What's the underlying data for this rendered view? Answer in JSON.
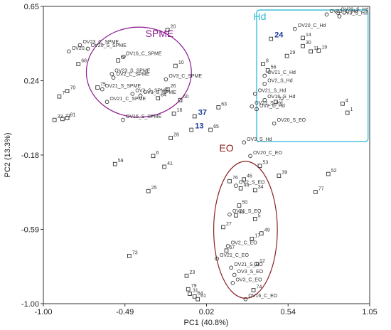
{
  "chart_data": {
    "type": "scatter",
    "xlabel": "PC1 (40.8%)",
    "ylabel": "PC2 (13.3%)",
    "xlim": [
      -1.0,
      1.05
    ],
    "ylim": [
      -1.0,
      0.65
    ],
    "xticks": [
      "-1.00",
      "-0.49",
      "0.02",
      "0.54",
      "1.05"
    ],
    "yticks": [
      "0.65",
      "0.24",
      "-0.18",
      "-0.59",
      "-1.00"
    ],
    "grid": false,
    "colors": {
      "spme": "#8b1a8f",
      "hd": "#2db8d4",
      "eo": "#8b2020",
      "highlight": "#1a3a9c",
      "marker": "#333333"
    },
    "groups": [
      {
        "label": "SPME",
        "type": "ellipse",
        "cx": -0.4,
        "cy": 0.285,
        "rx": 0.33,
        "ry": 0.25,
        "label_x": -0.27,
        "label_y": 0.48
      },
      {
        "label": "Hd",
        "type": "rect",
        "x0": 0.34,
        "x1": 1.04,
        "y0": -0.1,
        "y1": 0.63,
        "label_x": 0.36,
        "label_y": 0.575
      },
      {
        "label": "EO",
        "type": "ellipse",
        "cx": 0.27,
        "cy": -0.59,
        "rx": 0.2,
        "ry": 0.38,
        "label_x": 0.15,
        "label_y": -0.155
      }
    ],
    "points": [
      {
        "label": "OV23_C_SPME",
        "x": -0.77,
        "y": 0.435,
        "marker": "circle",
        "group": "spme"
      },
      {
        "label": "OV20_S_SPME",
        "x": -0.72,
        "y": 0.415,
        "marker": "circle",
        "group": "spme"
      },
      {
        "label": "OV20...",
        "x": -0.84,
        "y": 0.4,
        "marker": "circle",
        "group": "spme"
      },
      {
        "label": "OV16_C_SPME",
        "x": -0.5,
        "y": 0.37,
        "marker": "circle",
        "group": "spme"
      },
      {
        "label": "OV23_S_SPME",
        "x": -0.57,
        "y": 0.275,
        "marker": "circle",
        "group": "spme"
      },
      {
        "label": "OV2_C_SPME",
        "x": -0.56,
        "y": 0.255,
        "marker": "circle",
        "group": "spme"
      },
      {
        "label": "OV3_C_SPME",
        "x": -0.23,
        "y": 0.245,
        "marker": "circle",
        "group": "spme"
      },
      {
        "label": "OV21_S_SPME",
        "x": -0.63,
        "y": 0.19,
        "marker": "circle",
        "group": "spme"
      },
      {
        "label": "OV2_S_SPME",
        "x": -0.44,
        "y": 0.165,
        "marker": "circle",
        "group": "spme"
      },
      {
        "label": "OV3_S_SPME",
        "x": -0.39,
        "y": 0.155,
        "marker": "circle",
        "group": "spme"
      },
      {
        "label": "OV21_C_SPME",
        "x": -0.6,
        "y": 0.12,
        "marker": "circle",
        "group": "spme"
      },
      {
        "label": "OV16_S_SPME",
        "x": -0.5,
        "y": 0.02,
        "marker": "circle",
        "group": "spme"
      },
      {
        "label": "OV23_C_Hd",
        "x": 0.78,
        "y": 0.605,
        "marker": "circle",
        "group": "hd"
      },
      {
        "label": "OV20_S_Hd",
        "x": 0.85,
        "y": 0.615,
        "marker": "circle",
        "group": "hd"
      },
      {
        "label": "OV3_S_Hd",
        "x": 0.86,
        "y": 0.595,
        "marker": "circle",
        "group": "hd"
      },
      {
        "label": "OV20_C_Hd",
        "x": 0.58,
        "y": 0.525,
        "marker": "circle",
        "group": "hd"
      },
      {
        "label": "OV21_C_Hd",
        "x": 0.39,
        "y": 0.265,
        "marker": "circle",
        "group": "hd"
      },
      {
        "label": "OV2_S_Hd",
        "x": 0.39,
        "y": 0.22,
        "marker": "circle",
        "group": "hd"
      },
      {
        "label": "OV21_S_Hd",
        "x": 0.33,
        "y": 0.165,
        "marker": "circle",
        "group": "hd"
      },
      {
        "label": "OV16_S_Hd",
        "x": 0.39,
        "y": 0.13,
        "marker": "circle",
        "group": "hd"
      },
      {
        "label": "OV23_S_Hd",
        "x": 0.31,
        "y": 0.095,
        "marker": "circle",
        "group": "hd"
      },
      {
        "label": "OV2_C_Hd",
        "x": 0.34,
        "y": 0.08,
        "marker": "circle",
        "group": "hd"
      },
      {
        "label": "OV20_S_EO",
        "x": 0.45,
        "y": 0.0,
        "marker": "circle",
        "group": "hd"
      },
      {
        "label": "OV3_S_Hd",
        "x": 0.26,
        "y": -0.105,
        "marker": "circle",
        "group": "hd"
      },
      {
        "label": "OV20_C_EO",
        "x": 0.3,
        "y": -0.18,
        "marker": "circle",
        "group": "eo"
      },
      {
        "label": "OV2_S_EO",
        "x": 0.21,
        "y": -0.345,
        "marker": "circle",
        "group": "eo"
      },
      {
        "label": "OV21_S_EO",
        "x": 0.17,
        "y": -0.505,
        "marker": "circle",
        "group": "eo"
      },
      {
        "label": "OV2_C_EO",
        "x": 0.16,
        "y": -0.68,
        "marker": "circle",
        "group": "eo"
      },
      {
        "label": "OV21_C_EO",
        "x": 0.09,
        "y": -0.75,
        "marker": "circle",
        "group": "eo"
      },
      {
        "label": "OV21_S_EO",
        "x": 0.18,
        "y": -0.8,
        "marker": "circle",
        "group": "eo"
      },
      {
        "label": "OV3_S_EO",
        "x": 0.2,
        "y": -0.84,
        "marker": "circle",
        "group": "eo"
      },
      {
        "label": "OV3_C_EO",
        "x": 0.19,
        "y": -0.885,
        "marker": "circle",
        "group": "eo"
      },
      {
        "label": "OV16_C_EO",
        "x": 0.27,
        "y": -0.975,
        "marker": "circle",
        "group": "eo"
      },
      {
        "label": "20",
        "x": -0.22,
        "y": 0.52,
        "marker": "square"
      },
      {
        "label": "68",
        "x": -0.78,
        "y": 0.33,
        "marker": "square"
      },
      {
        "label": "67",
        "x": -0.53,
        "y": 0.35,
        "marker": "square"
      },
      {
        "label": "10",
        "x": -0.17,
        "y": 0.32,
        "marker": "square"
      },
      {
        "label": "70",
        "x": -0.85,
        "y": 0.18,
        "marker": "square"
      },
      {
        "label": "7",
        "x": -0.9,
        "y": 0.15,
        "marker": "square"
      },
      {
        "label": "75",
        "x": -0.66,
        "y": 0.2,
        "marker": "square"
      },
      {
        "label": "26",
        "x": -0.22,
        "y": 0.19,
        "marker": "square"
      },
      {
        "label": "60",
        "x": -0.14,
        "y": 0.13,
        "marker": "square"
      },
      {
        "label": "16",
        "x": -0.18,
        "y": 0.055,
        "marker": "square"
      },
      {
        "label": "54",
        "x": -0.28,
        "y": 0.14,
        "marker": "square"
      },
      {
        "label": "33",
        "x": -0.93,
        "y": 0.02,
        "marker": "square"
      },
      {
        "label": "71",
        "x": -0.88,
        "y": 0.025,
        "marker": "square"
      },
      {
        "label": "81",
        "x": -0.85,
        "y": 0.03,
        "marker": "square"
      },
      {
        "label": "37",
        "x": -0.05,
        "y": 0.04,
        "marker": "square",
        "highlight": true
      },
      {
        "label": "13",
        "x": -0.07,
        "y": -0.035,
        "marker": "square",
        "highlight": true
      },
      {
        "label": "63",
        "x": 0.1,
        "y": 0.09,
        "marker": "square"
      },
      {
        "label": "65",
        "x": 0.05,
        "y": -0.035,
        "marker": "square"
      },
      {
        "label": "28",
        "x": -0.2,
        "y": -0.08,
        "marker": "square"
      },
      {
        "label": "6",
        "x": -0.31,
        "y": -0.18,
        "marker": "square"
      },
      {
        "label": "59",
        "x": -0.55,
        "y": -0.225,
        "marker": "square"
      },
      {
        "label": "41",
        "x": -0.24,
        "y": -0.24,
        "marker": "square"
      },
      {
        "label": "25",
        "x": -0.34,
        "y": -0.375,
        "marker": "square"
      },
      {
        "label": "73",
        "x": -0.46,
        "y": -0.735,
        "marker": "square"
      },
      {
        "label": "24",
        "x": 0.43,
        "y": 0.47,
        "marker": "square",
        "highlight": true
      },
      {
        "label": "14",
        "x": 0.63,
        "y": 0.475,
        "marker": "square"
      },
      {
        "label": "30",
        "x": 0.63,
        "y": 0.43,
        "marker": "square"
      },
      {
        "label": "11",
        "x": 0.68,
        "y": 0.4,
        "marker": "square"
      },
      {
        "label": "19",
        "x": 0.73,
        "y": 0.405,
        "marker": "square"
      },
      {
        "label": "29",
        "x": 0.53,
        "y": 0.375,
        "marker": "square"
      },
      {
        "label": "8",
        "x": 0.38,
        "y": 0.33,
        "marker": "square"
      },
      {
        "label": "56",
        "x": 0.41,
        "y": 0.295,
        "marker": "square"
      },
      {
        "label": "4",
        "x": 0.88,
        "y": 0.11,
        "marker": "square"
      },
      {
        "label": "1",
        "x": 0.91,
        "y": 0.06,
        "marker": "square"
      },
      {
        "label": "72",
        "x": 0.46,
        "y": 0.12,
        "marker": "square"
      },
      {
        "label": "53",
        "x": 0.36,
        "y": -0.235,
        "marker": "square"
      },
      {
        "label": "39",
        "x": 0.48,
        "y": -0.29,
        "marker": "square"
      },
      {
        "label": "52",
        "x": 0.79,
        "y": -0.28,
        "marker": "square"
      },
      {
        "label": "77",
        "x": 0.71,
        "y": -0.38,
        "marker": "square"
      },
      {
        "label": "46",
        "x": 0.26,
        "y": -0.31,
        "marker": "square"
      },
      {
        "label": "76",
        "x": 0.17,
        "y": -0.32,
        "marker": "square"
      },
      {
        "label": "44",
        "x": 0.24,
        "y": -0.36,
        "marker": "square"
      },
      {
        "label": "34",
        "x": 0.33,
        "y": -0.37,
        "marker": "square"
      },
      {
        "label": "50",
        "x": 0.23,
        "y": -0.455,
        "marker": "square"
      },
      {
        "label": "48",
        "x": 0.21,
        "y": -0.51,
        "marker": "square"
      },
      {
        "label": "5",
        "x": 0.33,
        "y": -0.53,
        "marker": "square"
      },
      {
        "label": "27",
        "x": 0.13,
        "y": -0.575,
        "marker": "square"
      },
      {
        "label": "49",
        "x": 0.37,
        "y": -0.61,
        "marker": "square"
      },
      {
        "label": "17",
        "x": 0.31,
        "y": -0.64,
        "marker": "square"
      },
      {
        "label": "57",
        "x": 0.15,
        "y": -0.705,
        "marker": "square"
      },
      {
        "label": "12",
        "x": 0.34,
        "y": -0.78,
        "marker": "square"
      },
      {
        "label": "23",
        "x": -0.1,
        "y": -0.845,
        "marker": "square"
      },
      {
        "label": "74",
        "x": 0.32,
        "y": -0.925,
        "marker": "square"
      },
      {
        "label": "79",
        "x": -0.09,
        "y": -0.92,
        "marker": "square"
      },
      {
        "label": "31",
        "x": -0.08,
        "y": -0.945,
        "marker": "square"
      },
      {
        "label": "64",
        "x": -0.05,
        "y": -0.96,
        "marker": "square"
      },
      {
        "label": "61",
        "x": -0.03,
        "y": -0.975,
        "marker": "square"
      }
    ]
  }
}
